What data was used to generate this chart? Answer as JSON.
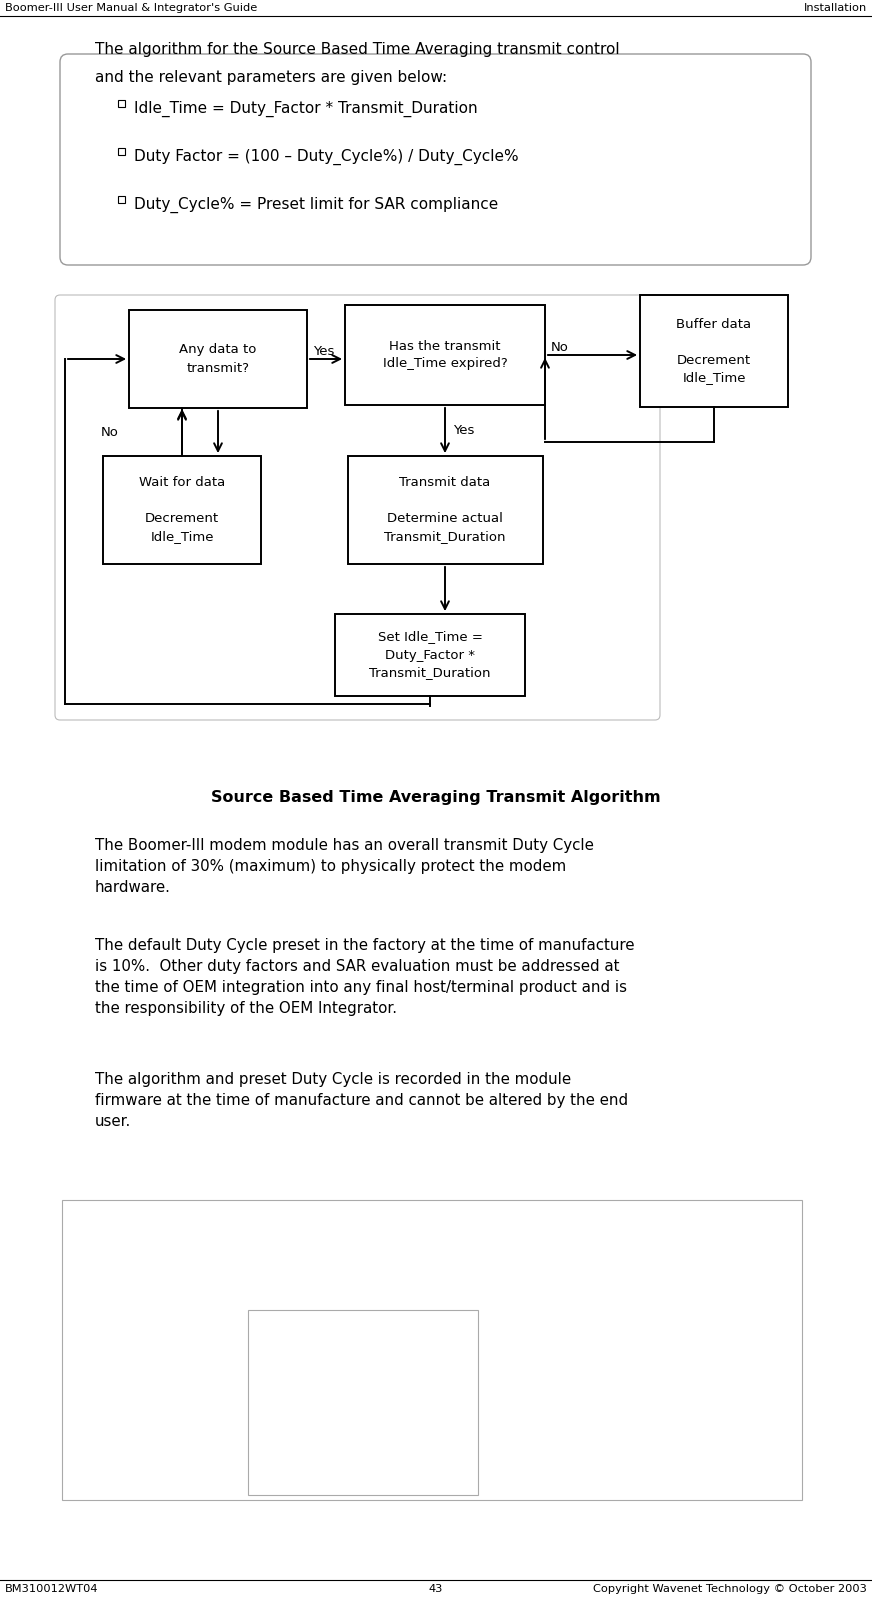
{
  "header_left": "Boomer-III User Manual & Integrator's Guide",
  "header_right": "Installation",
  "footer_left": "BM310012WT04",
  "footer_center": "43",
  "footer_right": "Copyright Wavenet Technology © October 2003",
  "intro_line1": "The algorithm for the Source Based Time Averaging transmit control",
  "intro_line2": "and the relevant parameters are given below:",
  "bullets": [
    "Idle_Time = Duty_Factor * Transmit_Duration",
    "Duty Factor = (100 – Duty_Cycle%) / Duty_Cycle%",
    "Duty_Cycle% = Preset limit for SAR compliance"
  ],
  "caption": "Source Based Time Averaging Transmit Algorithm",
  "body_text1": "The Boomer-III modem module has an overall transmit Duty Cycle\nlimitation of 30% (maximum) to physically protect the modem\nhardware.",
  "body_text2": "The default Duty Cycle preset in the factory at the time of manufacture\nis 10%.  Other duty factors and SAR evaluation must be addressed at\nthe time of OEM integration into any final host/terminal product and is\nthe responsibility of the OEM Integrator.",
  "body_text3": "The algorithm and preset Duty Cycle is recorded in the module\nfirmware at the time of manufacture and cannot be altered by the end\nuser.",
  "box_any_data": "Any data to\ntransmit?",
  "box_idle_expired": "Has the transmit\nIdle_Time expired?",
  "box_buffer": "Buffer data\n\nDecrement\nIdle_Time",
  "box_wait": "Wait for data\n\nDecrement\nIdle_Time",
  "box_transmit": "Transmit data\n\nDetermine actual\nTransmit_Duration",
  "box_set_idle": "Set Idle_Time =\nDuty_Factor *\nTransmit_Duration",
  "label_yes1": "Yes",
  "label_no1": "No",
  "label_no2": "No",
  "label_yes2": "Yes"
}
